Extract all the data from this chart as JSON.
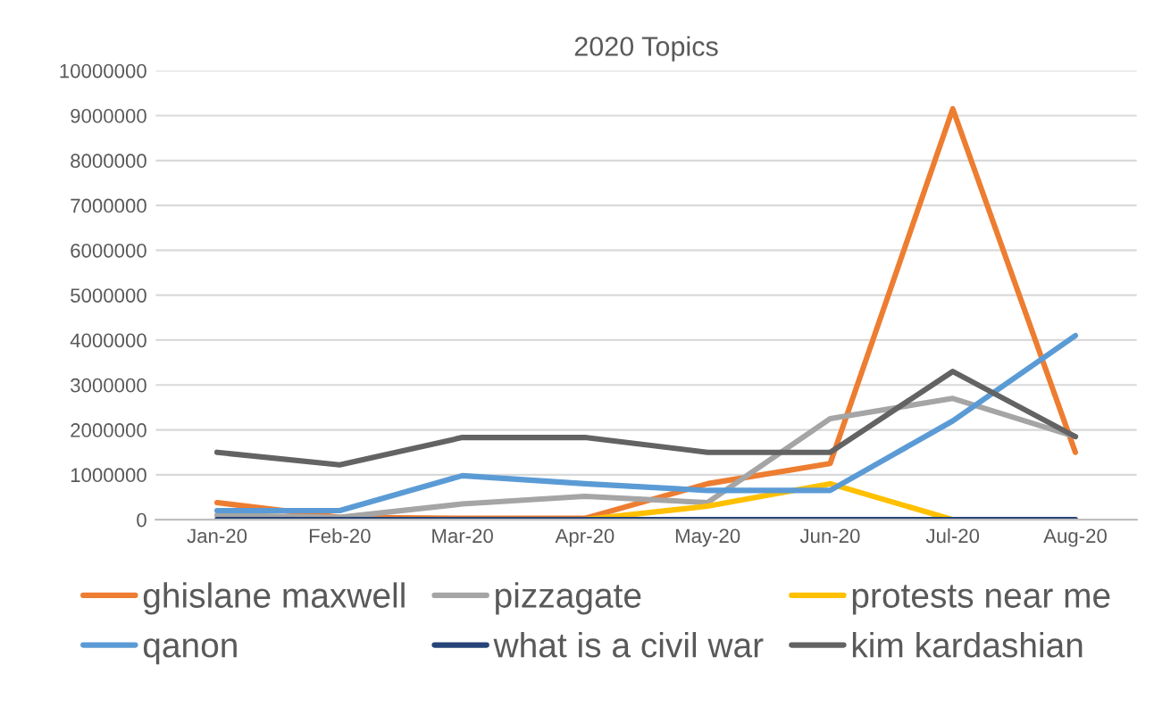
{
  "chart_data": {
    "type": "line",
    "title": "2020 Topics",
    "categories": [
      "Jan-20",
      "Feb-20",
      "Mar-20",
      "Apr-20",
      "May-20",
      "Jun-20",
      "Jul-20",
      "Aug-20"
    ],
    "series": [
      {
        "name": "ghislane maxwell",
        "color": "#ed7d31",
        "values": [
          380000,
          50000,
          30000,
          30000,
          800000,
          1250000,
          9150000,
          1500000
        ]
      },
      {
        "name": "pizzagate",
        "color": "#a5a5a5",
        "values": [
          100000,
          50000,
          350000,
          520000,
          380000,
          2250000,
          2700000,
          1850000
        ]
      },
      {
        "name": "protests near me",
        "color": "#ffc000",
        "values": [
          null,
          null,
          0,
          0,
          300000,
          800000,
          0,
          0
        ]
      },
      {
        "name": "qanon",
        "color": "#5b9bd5",
        "values": [
          200000,
          200000,
          980000,
          800000,
          650000,
          650000,
          2200000,
          4100000
        ]
      },
      {
        "name": "what is a civil war",
        "color": "#264478",
        "values": [
          0,
          0,
          0,
          0,
          0,
          0,
          0,
          0
        ]
      },
      {
        "name": "kim kardashian",
        "color": "#636363",
        "values": [
          1500000,
          1220000,
          1830000,
          1830000,
          1500000,
          1500000,
          3300000,
          1850000
        ]
      }
    ],
    "ylim": [
      0,
      10000000
    ],
    "yticks": [
      0,
      1000000,
      2000000,
      3000000,
      4000000,
      5000000,
      6000000,
      7000000,
      8000000,
      9000000,
      10000000
    ],
    "grid": "y",
    "legend": "bottom",
    "marker": "none",
    "line_style": "solid"
  }
}
